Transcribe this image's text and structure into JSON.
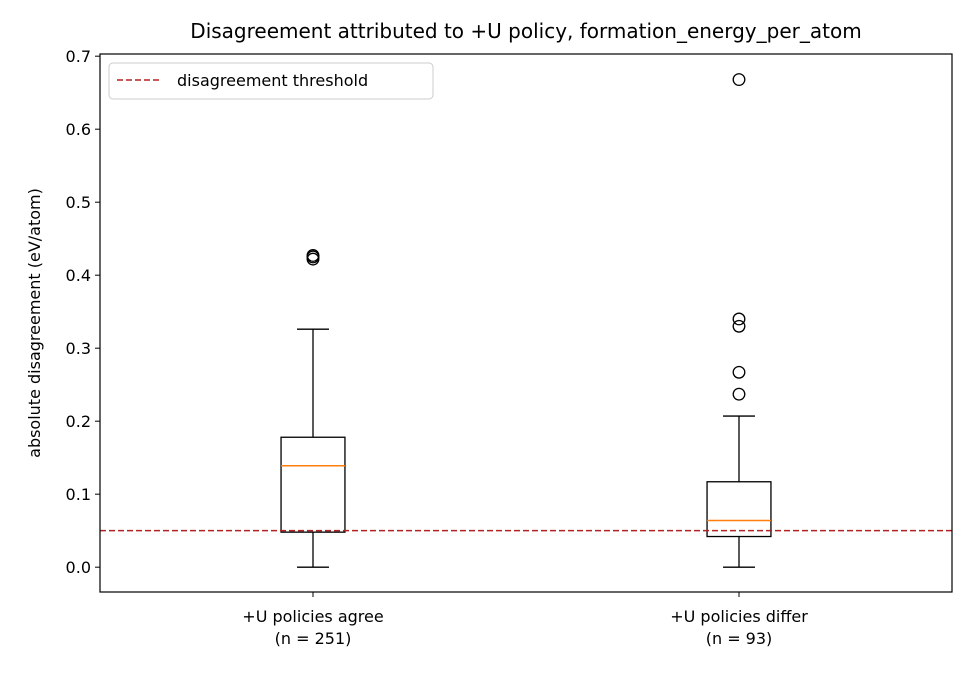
{
  "chart_data": {
    "type": "box",
    "title": "Disagreement attributed to +U policy, formation_energy_per_atom",
    "xlabel": "",
    "ylabel": "absolute disagreement (eV/atom)",
    "ylim": [
      -0.034,
      0.703
    ],
    "yticks": [
      0.0,
      0.1,
      0.2,
      0.3,
      0.4,
      0.5,
      0.6,
      0.7
    ],
    "ytick_labels": [
      "0.0",
      "0.1",
      "0.2",
      "0.3",
      "0.4",
      "0.5",
      "0.6",
      "0.7"
    ],
    "grid": false,
    "legend": {
      "placement": "top-left",
      "entries": [
        {
          "label": "disagreement threshold",
          "style": "dashed",
          "color": "#b22222"
        }
      ]
    },
    "threshold": 0.05,
    "threshold_color": "#b22222",
    "median_color": "#ff7f0e",
    "categories": [
      {
        "line1": "+U policies agree",
        "line2": "(n = 251)"
      },
      {
        "line1": "+U policies differ",
        "line2": "(n = 93)"
      }
    ],
    "boxes": [
      {
        "whisker_low": 0.0,
        "q1": 0.048,
        "median": 0.139,
        "q3": 0.178,
        "whisker_high": 0.326,
        "outliers": [
          0.422,
          0.425,
          0.427
        ]
      },
      {
        "whisker_low": 0.0,
        "q1": 0.042,
        "median": 0.064,
        "q3": 0.117,
        "whisker_high": 0.207,
        "outliers": [
          0.237,
          0.267,
          0.33,
          0.34,
          0.668
        ]
      }
    ]
  }
}
